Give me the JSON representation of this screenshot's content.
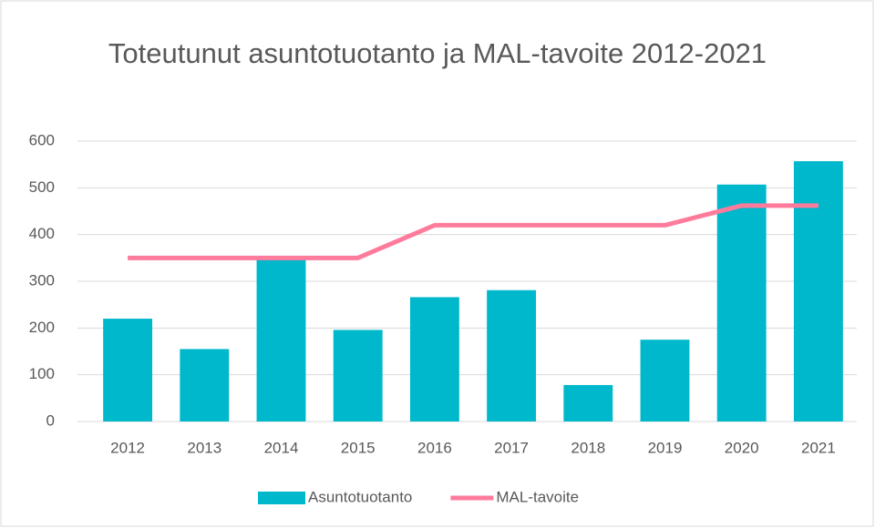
{
  "chart_data": {
    "type": "bar",
    "title": "Toteutunut asuntotuotanto ja MAL-tavoite 2012-2021",
    "categories": [
      "2012",
      "2013",
      "2014",
      "2015",
      "2016",
      "2017",
      "2018",
      "2019",
      "2020",
      "2021"
    ],
    "series": [
      {
        "name": "Asuntotuotanto",
        "type": "bar",
        "color": "#00b8cc",
        "values": [
          220,
          155,
          348,
          196,
          266,
          281,
          78,
          175,
          507,
          557
        ]
      },
      {
        "name": "MAL-tavoite",
        "type": "line",
        "color": "#ff7b9c",
        "values": [
          350,
          350,
          350,
          350,
          420,
          420,
          420,
          420,
          462,
          462
        ]
      }
    ],
    "ylim": [
      0,
      600
    ],
    "yticks": [
      0,
      100,
      200,
      300,
      400,
      500,
      600
    ],
    "grid": true,
    "legend": "bottom"
  }
}
